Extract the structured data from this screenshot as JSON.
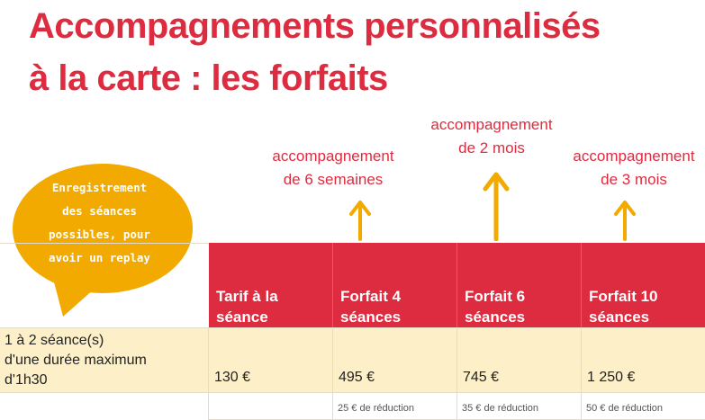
{
  "title": {
    "line1": "Accompagnements personnalisés",
    "line2": "à la carte : les forfaits"
  },
  "notes": [
    {
      "line1": "accompagnement",
      "line2": "de 6 semaines"
    },
    {
      "line1": "accompagnement",
      "line2": "de 2 mois"
    },
    {
      "line1": "accompagnement",
      "line2": "de 3 mois"
    }
  ],
  "bubble": {
    "lines": [
      "Enregistrement",
      "des séances",
      "possibles, pour",
      "avoir un replay"
    ]
  },
  "table": {
    "headers": [
      {
        "line1": "Tarif à la",
        "line2": "séance"
      },
      {
        "line1": "Forfait 4",
        "line2": "séances"
      },
      {
        "line1": "Forfait 6",
        "line2": "séances"
      },
      {
        "line1": "Forfait 10",
        "line2": "séances"
      }
    ],
    "row_label": [
      "1 à 2 séance(s)",
      "d'une durée maximum",
      "d'1h30"
    ],
    "prices": [
      "130 €",
      "495 €",
      "745 €",
      "1 250 €"
    ],
    "discounts": [
      "",
      "25 € de réduction",
      "35 € de réduction",
      "50 € de réduction"
    ]
  },
  "colors": {
    "accent": "#dd2b3f",
    "bubble": "#f2aa00",
    "cream": "#fdf0c8"
  }
}
